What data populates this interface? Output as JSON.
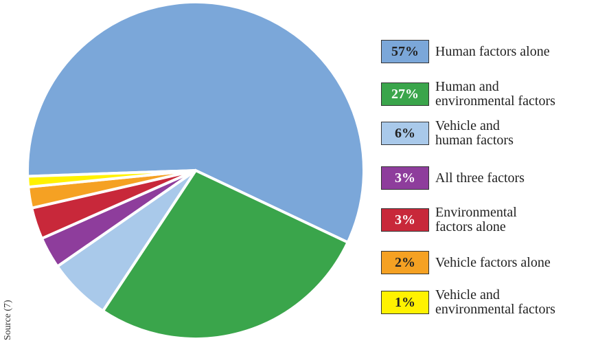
{
  "chart_data": {
    "type": "pie",
    "categories": [
      "Human factors alone",
      "Human and\nenvironmental factors",
      "Vehicle and\nhuman factors",
      "All three factors",
      "Environmental\nfactors alone",
      "Vehicle factors alone",
      "Vehicle and\nenvironmental factors"
    ],
    "values": [
      57,
      27,
      6,
      3,
      3,
      2,
      1
    ],
    "value_labels": [
      "57%",
      "27%",
      "6%",
      "3%",
      "3%",
      "2%",
      "1%"
    ],
    "colors": [
      "#7ba7d9",
      "#3aa54b",
      "#a9c9ea",
      "#8e3d9c",
      "#c8283a",
      "#f5a123",
      "#fff200"
    ],
    "source": "Source (7)"
  }
}
